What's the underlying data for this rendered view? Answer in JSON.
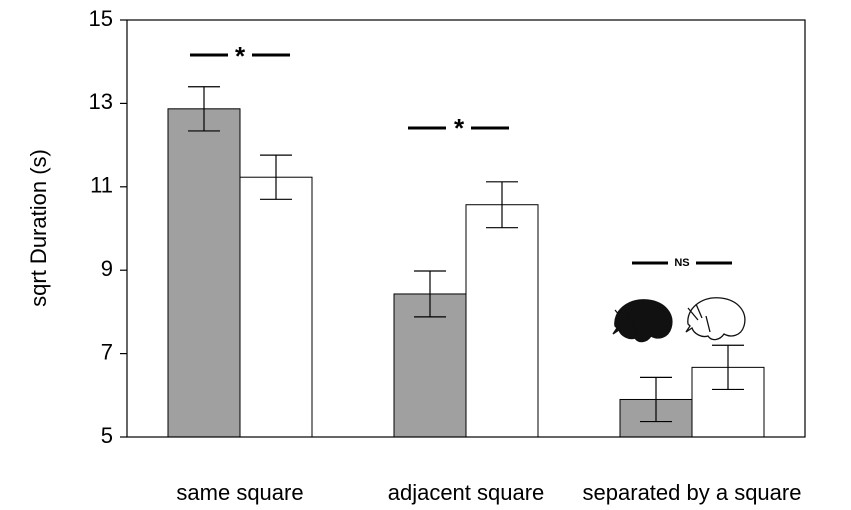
{
  "chart_data": {
    "type": "bar",
    "y_label": "sqrt Duration (s)",
    "categories": [
      "same square",
      "adjacent square",
      "separated by a square"
    ],
    "series": [
      {
        "color": "#a0a0a0",
        "values": [
          12.87,
          8.43,
          5.9
        ],
        "errors": [
          0.53,
          0.55,
          0.53
        ]
      },
      {
        "color": "#ffffff",
        "values": [
          11.23,
          10.57,
          6.67
        ],
        "errors": [
          0.53,
          0.55,
          0.53
        ]
      }
    ],
    "ylim": [
      5,
      15
    ],
    "yticks": [
      5,
      7,
      9,
      11,
      13,
      15
    ],
    "annotations": [
      "*",
      "*",
      "NS"
    ]
  }
}
